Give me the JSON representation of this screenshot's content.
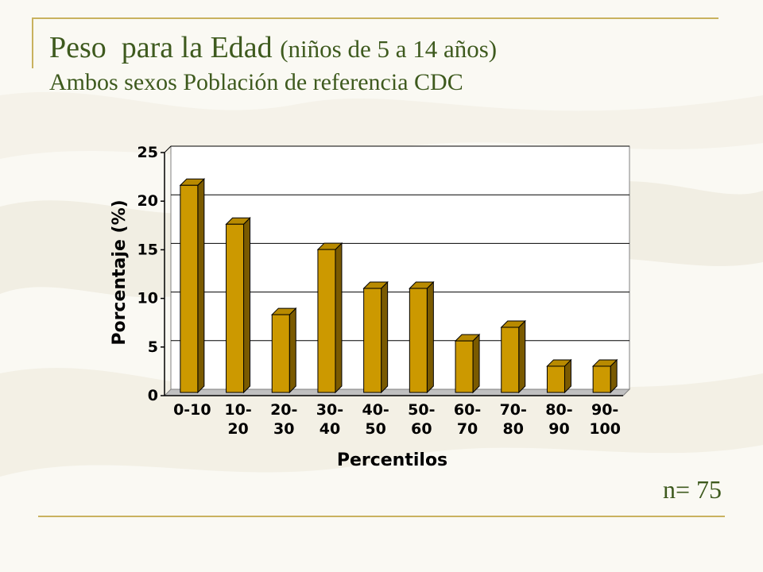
{
  "title": {
    "main": "Peso  para la Edad",
    "main_sub": "(niños de 5 a 14 años)",
    "subtitle": "Ambos sexos Población de referencia CDC"
  },
  "sample_label": "n= 75",
  "colors": {
    "title": "#3e5a1e",
    "bar_front": "#cc9900",
    "bar_side": "#7a5a00",
    "bar_top": "#b88a00",
    "rule": "#c9b25f"
  },
  "chart_data": {
    "type": "bar",
    "categories": [
      "0-10",
      "10-20",
      "20-30",
      "30-40",
      "40-50",
      "50-60",
      "60-70",
      "70-80",
      "80-90",
      "90-100"
    ],
    "category_lines": [
      [
        "0-10"
      ],
      [
        "10-",
        "20"
      ],
      [
        "20-",
        "30"
      ],
      [
        "30-",
        "40"
      ],
      [
        "40-",
        "50"
      ],
      [
        "50-",
        "60"
      ],
      [
        "60-",
        "70"
      ],
      [
        "70-",
        "80"
      ],
      [
        "80-",
        "90"
      ],
      [
        "90-",
        "100"
      ]
    ],
    "values": [
      21.3,
      17.3,
      8.0,
      14.7,
      10.7,
      10.7,
      5.3,
      6.7,
      2.7,
      2.7
    ],
    "xlabel": "Percentilos",
    "ylabel": "Porcentaje (%)",
    "ylim": [
      0,
      25
    ],
    "yticks": [
      "0",
      "5",
      "10",
      "15",
      "20",
      "25"
    ],
    "grid": true,
    "style": "3d"
  }
}
